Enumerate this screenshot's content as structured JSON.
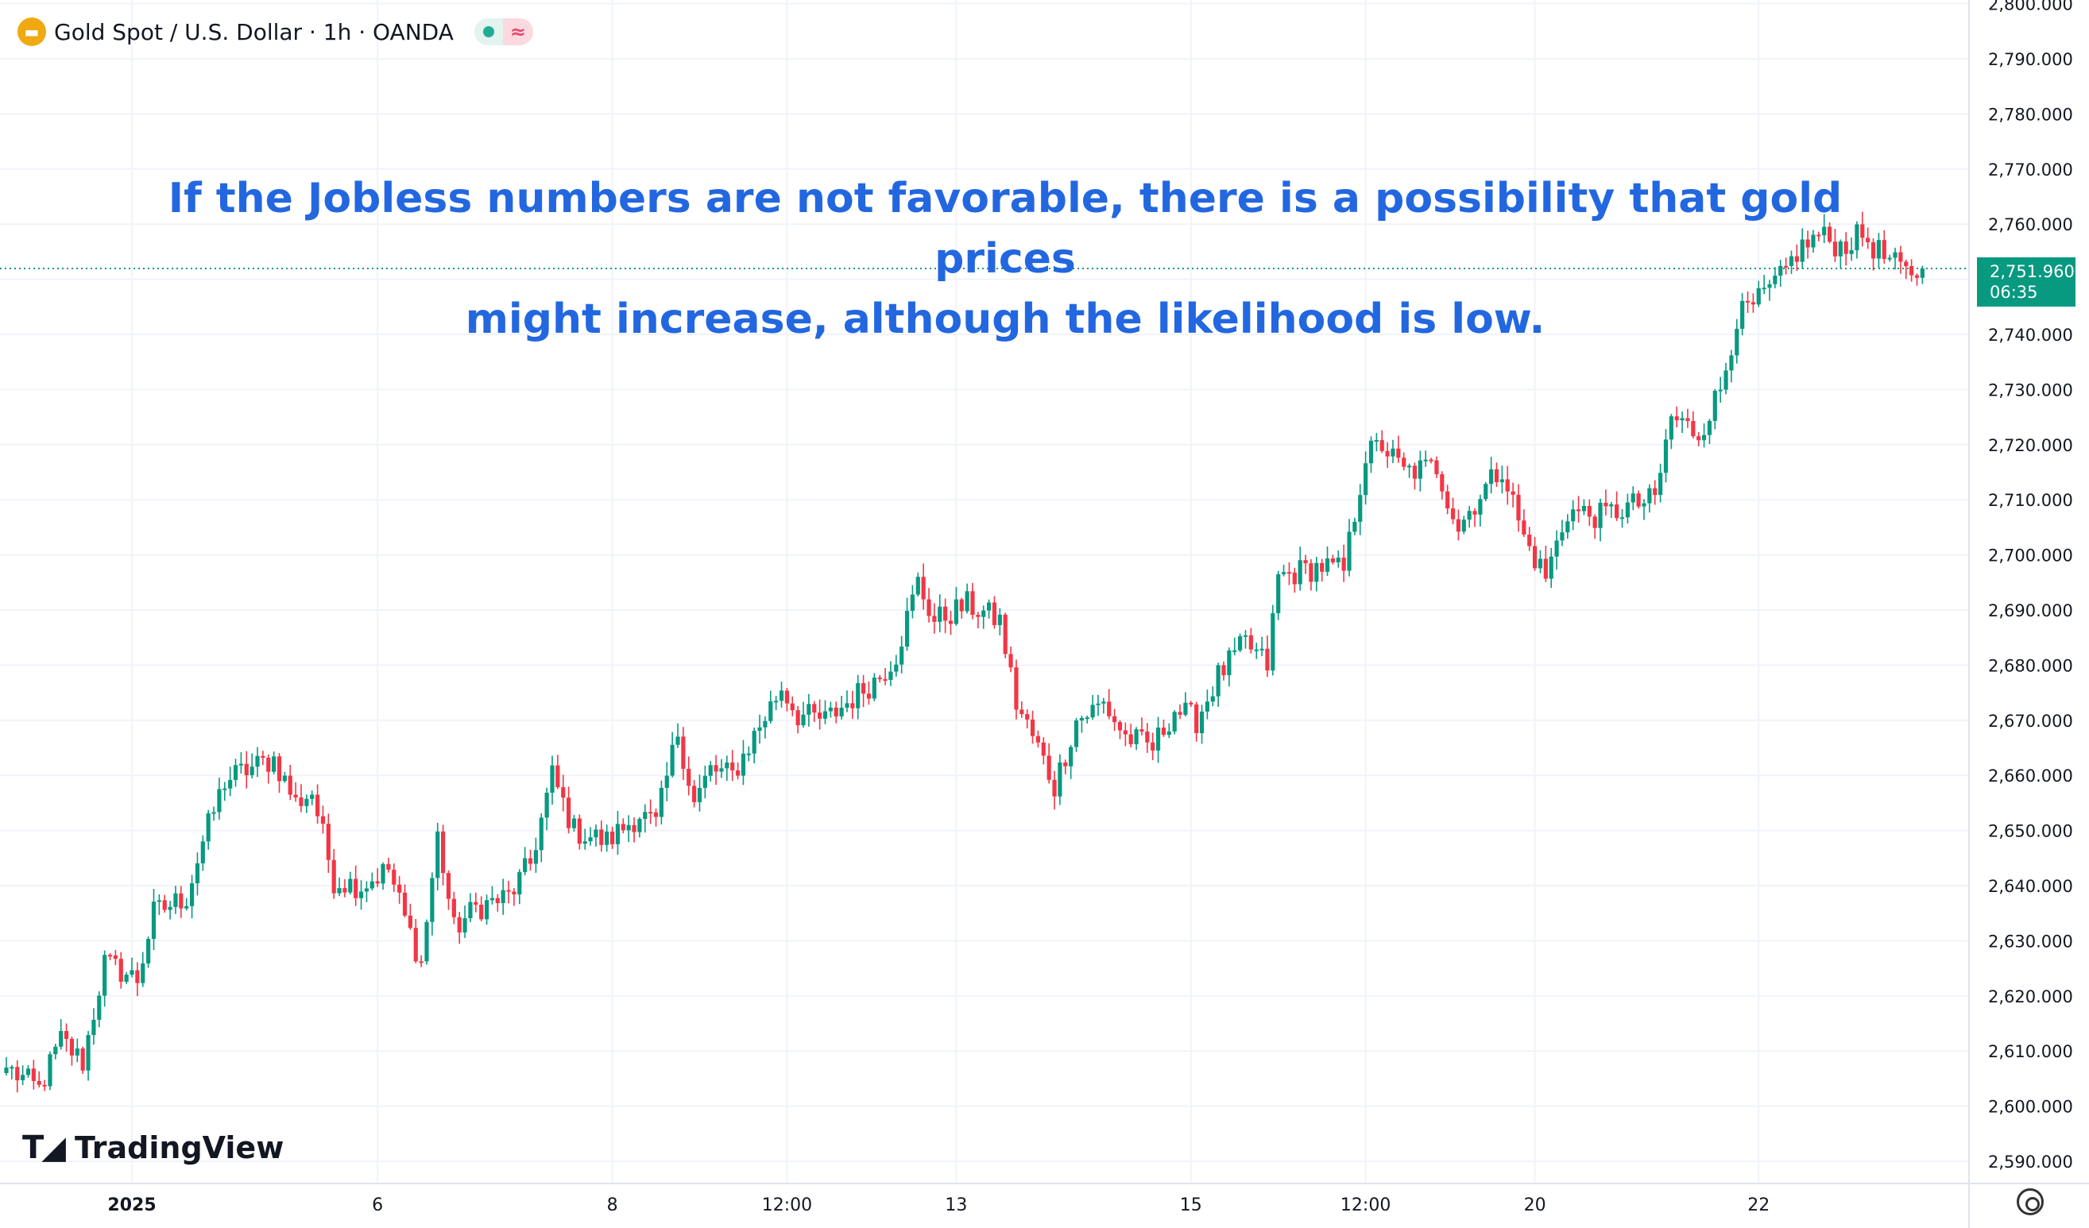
{
  "header": {
    "symbol_title": "Gold Spot / U.S. Dollar · 1h · OANDA",
    "logo_icon": "gold-bars-icon",
    "status_icons": [
      "market-open-dot-icon",
      "wave-icon"
    ]
  },
  "annotation": {
    "line1": "If the Jobless numbers are not favorable, there is a possibility that gold prices",
    "line2": "might increase, although the likelihood is low."
  },
  "last_price": {
    "value": "2,751.960",
    "countdown": "06:35"
  },
  "watermark": "TradingView",
  "colors": {
    "up": "#089981",
    "down": "#f23645",
    "annotation_text": "#2367e0",
    "price_tag": "#089981",
    "grid": "#f0f3fa"
  },
  "chart_data": {
    "type": "candlestick",
    "title": "Gold Spot / U.S. Dollar · 1h · OANDA",
    "interval": "1h",
    "ylim": [
      2585,
      2800
    ],
    "y_ticks": [
      2590,
      2600,
      2610,
      2620,
      2630,
      2640,
      2650,
      2660,
      2670,
      2680,
      2690,
      2700,
      2710,
      2720,
      2730,
      2740,
      2750,
      2760,
      2770,
      2780,
      2790,
      2800
    ],
    "y_tick_labels": [
      "2,590.000",
      "2,600.000",
      "2,610.000",
      "2,620.000",
      "2,630.000",
      "2,640.000",
      "2,650.000",
      "2,660.000",
      "2,670.000",
      "2,680.000",
      "2,690.000",
      "2,700.000",
      "2,710.000",
      "2,720.000",
      "2,730.000",
      "2,740.000",
      "2,750.000",
      "2,760.000",
      "2,770.000",
      "2,780.000",
      "2,790.000",
      "2,800.000"
    ],
    "x_ticks": [
      {
        "label": "2025",
        "index": 23
      },
      {
        "label": "6",
        "index": 68
      },
      {
        "label": "8",
        "index": 111
      },
      {
        "label": "12:00",
        "index": 143
      },
      {
        "label": "13",
        "index": 174
      },
      {
        "label": "15",
        "index": 217
      },
      {
        "label": "12:00",
        "index": 249
      },
      {
        "label": "20",
        "index": 280
      },
      {
        "label": "22",
        "index": 321
      }
    ],
    "grid": true,
    "last_value": 2751.96,
    "close_anchors": [
      [
        0,
        2607
      ],
      [
        6,
        2603
      ],
      [
        10,
        2612
      ],
      [
        14,
        2608
      ],
      [
        18,
        2626
      ],
      [
        24,
        2623
      ],
      [
        27,
        2635
      ],
      [
        33,
        2638
      ],
      [
        36,
        2648
      ],
      [
        40,
        2659
      ],
      [
        44,
        2661
      ],
      [
        49,
        2663
      ],
      [
        53,
        2655
      ],
      [
        56,
        2657
      ],
      [
        60,
        2641
      ],
      [
        65,
        2640
      ],
      [
        70,
        2643
      ],
      [
        73,
        2634
      ],
      [
        76,
        2626
      ],
      [
        79,
        2649
      ],
      [
        82,
        2632
      ],
      [
        86,
        2636
      ],
      [
        92,
        2638
      ],
      [
        96,
        2644
      ],
      [
        100,
        2660
      ],
      [
        104,
        2650
      ],
      [
        110,
        2648
      ],
      [
        116,
        2653
      ],
      [
        119,
        2651
      ],
      [
        123,
        2668
      ],
      [
        126,
        2655
      ],
      [
        129,
        2661
      ],
      [
        133,
        2660
      ],
      [
        138,
        2669
      ],
      [
        142,
        2676
      ],
      [
        145,
        2671
      ],
      [
        150,
        2670
      ],
      [
        155,
        2674
      ],
      [
        160,
        2678
      ],
      [
        163,
        2682
      ],
      [
        167,
        2695
      ],
      [
        170,
        2688
      ],
      [
        176,
        2691
      ],
      [
        182,
        2688
      ],
      [
        185,
        2673
      ],
      [
        189,
        2665
      ],
      [
        192,
        2658
      ],
      [
        196,
        2670
      ],
      [
        201,
        2673
      ],
      [
        205,
        2667
      ],
      [
        210,
        2665
      ],
      [
        214,
        2672
      ],
      [
        218,
        2670
      ],
      [
        222,
        2678
      ],
      [
        227,
        2684
      ],
      [
        231,
        2680
      ],
      [
        233,
        2696
      ],
      [
        237,
        2697
      ],
      [
        241,
        2698
      ],
      [
        245,
        2697
      ],
      [
        249,
        2718
      ],
      [
        252,
        2720
      ],
      [
        256,
        2715
      ],
      [
        262,
        2716
      ],
      [
        266,
        2705
      ],
      [
        270,
        2711
      ],
      [
        274,
        2716
      ],
      [
        278,
        2703
      ],
      [
        282,
        2696
      ],
      [
        286,
        2708
      ],
      [
        292,
        2707
      ],
      [
        298,
        2709
      ],
      [
        302,
        2710
      ],
      [
        305,
        2725
      ],
      [
        310,
        2722
      ],
      [
        314,
        2730
      ],
      [
        317,
        2743
      ],
      [
        320,
        2745
      ],
      [
        325,
        2750
      ],
      [
        328,
        2755
      ],
      [
        332,
        2758
      ],
      [
        336,
        2756
      ],
      [
        340,
        2758
      ],
      [
        344,
        2754
      ],
      [
        348,
        2751
      ],
      [
        351,
        2752
      ]
    ]
  }
}
